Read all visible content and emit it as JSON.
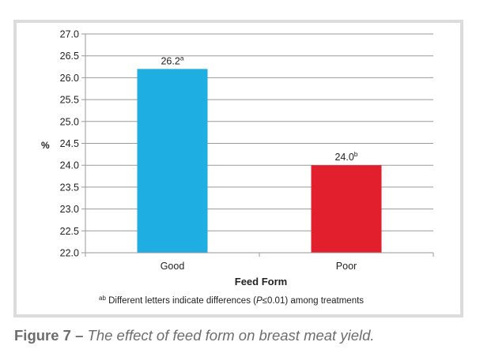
{
  "chart_data": {
    "type": "bar",
    "title": "",
    "xlabel": "Feed Form",
    "ylabel": "%",
    "ylim": [
      22.0,
      27.0
    ],
    "yticks": [
      "27.0",
      "26.5",
      "26.0",
      "25.5",
      "25.0",
      "24.5",
      "24.0",
      "23.5",
      "23.0",
      "22.5",
      "22.0"
    ],
    "ytick_values": [
      27.0,
      26.5,
      26.0,
      25.5,
      25.0,
      24.5,
      24.0,
      23.5,
      23.0,
      22.5,
      22.0
    ],
    "categories": [
      "Good",
      "Poor"
    ],
    "values": [
      26.2,
      24.0
    ],
    "data_labels": [
      {
        "value": "26.2",
        "superscript": "a"
      },
      {
        "value": "24.0",
        "superscript": "b"
      }
    ],
    "colors": [
      "#1eaee2",
      "#e2202d"
    ],
    "grid": true,
    "legend": "none",
    "footnote": {
      "superscript": "ab",
      "text_before": " Different letters indicate differences (",
      "italic": "P",
      "text_after": "≤0.01) among treatments"
    }
  },
  "caption": {
    "lead": "Figure 7 – ",
    "text": "The effect of feed form on breast meat yield."
  }
}
